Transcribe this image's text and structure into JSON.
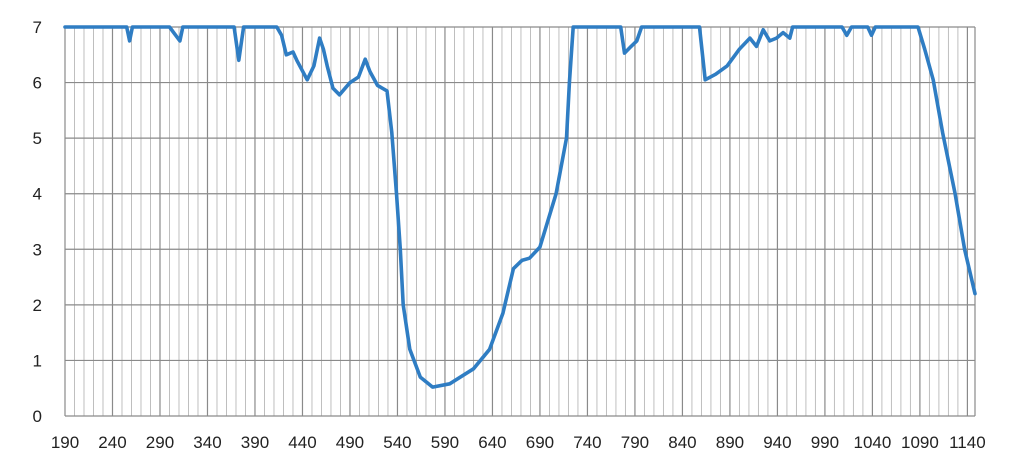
{
  "chart_data": {
    "type": "line",
    "title": "",
    "xlabel": "",
    "ylabel": "",
    "xlim": [
      190,
      1148
    ],
    "ylim": [
      0,
      7
    ],
    "grid": true,
    "legend": "none",
    "x_ticks": [
      "190",
      "240",
      "290",
      "340",
      "390",
      "440",
      "490",
      "540",
      "590",
      "640",
      "690",
      "740",
      "790",
      "840",
      "890",
      "940",
      "990",
      "1040",
      "1090",
      "1140"
    ],
    "y_ticks": [
      "0",
      "1",
      "2",
      "3",
      "4",
      "5",
      "6",
      "7"
    ],
    "line_color": "#2f7dc3",
    "series": [
      {
        "x": [
          190,
          255,
          258,
          261,
          300,
          311,
          314,
          368,
          373,
          378,
          405,
          413,
          418,
          423,
          430,
          434,
          445,
          452,
          458,
          462,
          466,
          472,
          479,
          490,
          499,
          506,
          511,
          519,
          529,
          534,
          539,
          543,
          546,
          553,
          564,
          577,
          595,
          620,
          637,
          651,
          662,
          671,
          679,
          690,
          707,
          718,
          721,
          725,
          775,
          779,
          786,
          792,
          797,
          855,
          858,
          864,
          875,
          887,
          900,
          911,
          918,
          925,
          932,
          939,
          946,
          953,
          956,
          1008,
          1013,
          1018,
          1035,
          1039,
          1043,
          1088,
          1095,
          1104,
          1114,
          1127,
          1137,
          1148
        ],
        "y": [
          7,
          7,
          6.75,
          7,
          7,
          6.75,
          7,
          7,
          6.4,
          7,
          7,
          7,
          6.85,
          6.5,
          6.55,
          6.4,
          6.05,
          6.3,
          6.8,
          6.6,
          6.3,
          5.9,
          5.78,
          6.0,
          6.1,
          6.42,
          6.2,
          5.95,
          5.85,
          5.1,
          4.0,
          3.0,
          2.0,
          1.2,
          0.7,
          0.52,
          0.58,
          0.85,
          1.2,
          1.85,
          2.65,
          2.8,
          2.84,
          3.04,
          4.0,
          5.0,
          6.0,
          7,
          7,
          6.53,
          6.65,
          6.75,
          7,
          7,
          7,
          6.05,
          6.15,
          6.3,
          6.6,
          6.8,
          6.65,
          6.95,
          6.75,
          6.8,
          6.9,
          6.8,
          7,
          7,
          6.85,
          7,
          7,
          6.85,
          7,
          7,
          6.6,
          6.05,
          5.09,
          4.0,
          3.0,
          2.2
        ]
      }
    ]
  }
}
